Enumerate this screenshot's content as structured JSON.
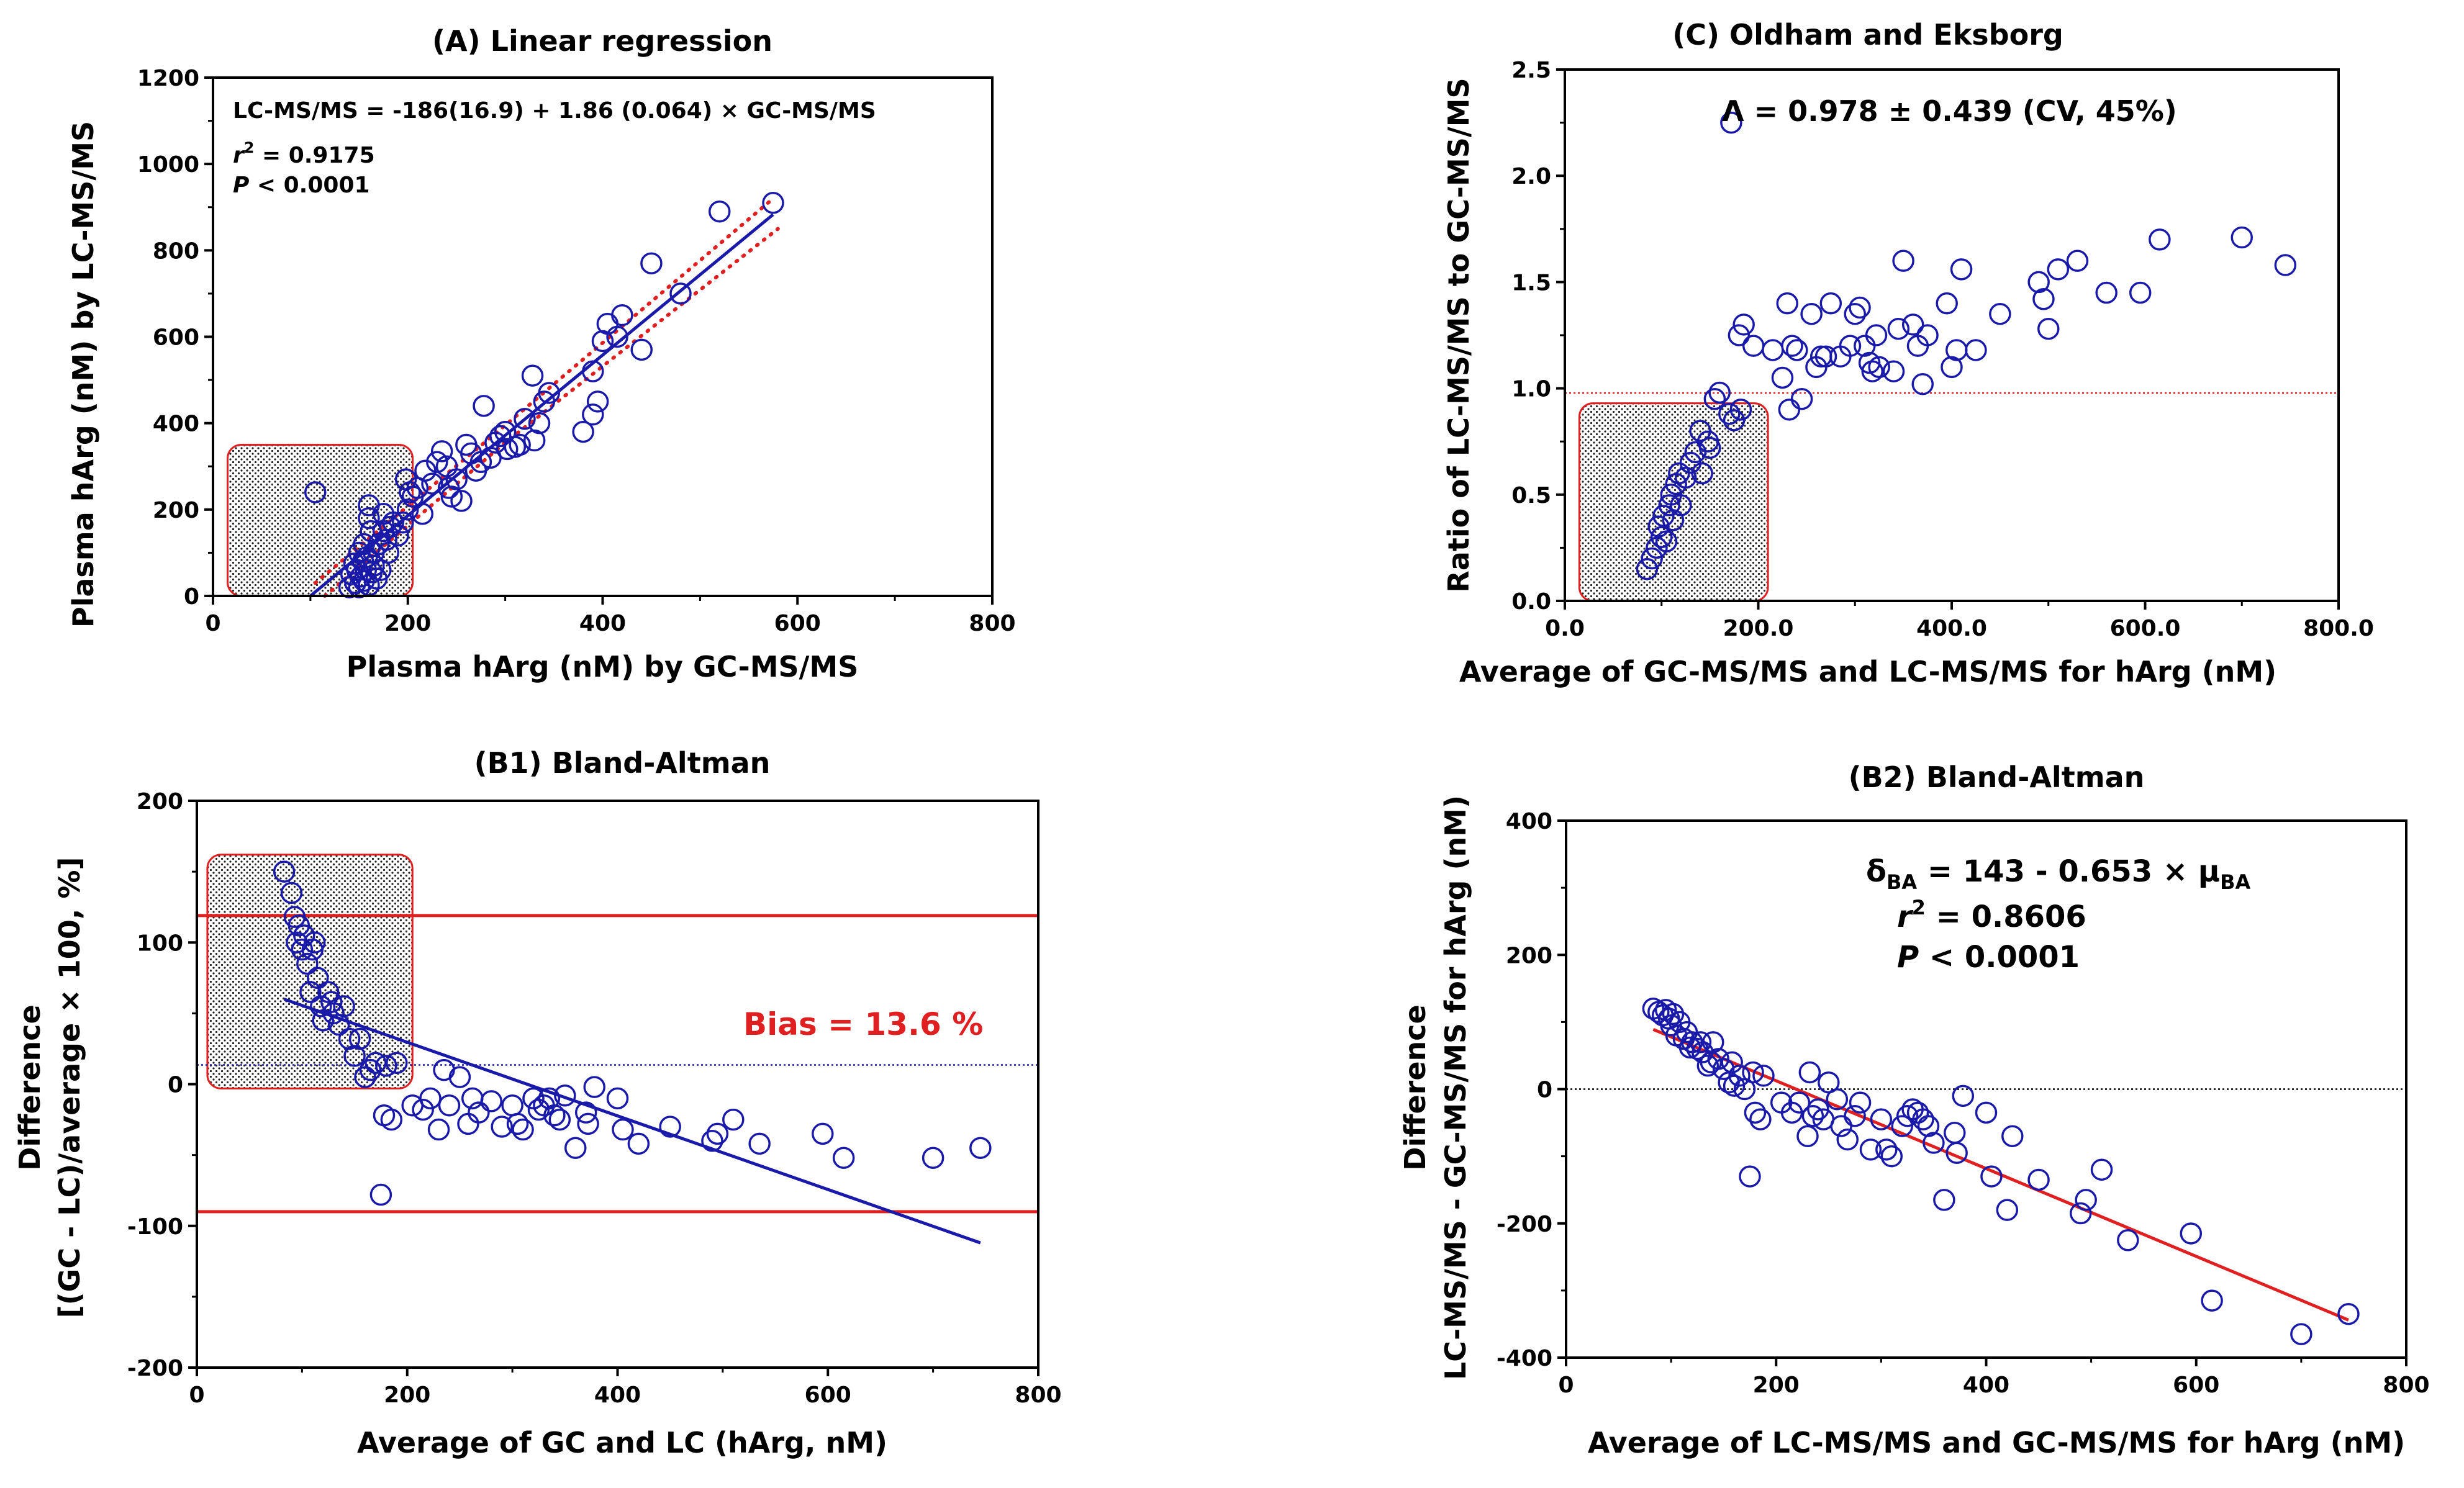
{
  "figure": {
    "colors": {
      "blue": "#1a1aaa",
      "red": "#e02020",
      "black": "#000000"
    }
  },
  "chart_data": [
    {
      "id": "A",
      "type": "scatter",
      "title": "(A) Linear regression",
      "xlabel": "Plasma hArg (nM) by GC-MS/MS",
      "ylabel": "Plasma hArg (nM) by LC-MS/MS",
      "xlim": [
        0,
        800
      ],
      "ylim": [
        0,
        1200
      ],
      "xticks": [
        0,
        200,
        400,
        600,
        800
      ],
      "yticks": [
        0,
        200,
        400,
        600,
        800,
        1000,
        1200
      ],
      "annotations": {
        "equation": "LC-MS/MS = -186(16.9) + 1.86 (0.064) × GC-MS/MS",
        "r2_label": "r",
        "r2_sup": "2",
        "r2_value": " = 0.9175",
        "p_label": "P",
        "p_value": " < 0.0001"
      },
      "regression": {
        "x": [
          100,
          575
        ],
        "y": [
          0,
          883
        ]
      },
      "ci_upper": {
        "x": [
          105,
          300,
          575
        ],
        "y": [
          30,
          395,
          920
        ]
      },
      "ci_lower": {
        "x": [
          115,
          300,
          580
        ],
        "y": [
          0,
          355,
          850
        ]
      },
      "shaded_region": {
        "x0": 15,
        "x1": 205,
        "y0": 0,
        "y1": 350
      },
      "points": [
        [
          105,
          240
        ],
        [
          140,
          20
        ],
        [
          142,
          50
        ],
        [
          145,
          75
        ],
        [
          146,
          30
        ],
        [
          148,
          60
        ],
        [
          150,
          100
        ],
        [
          150,
          20
        ],
        [
          152,
          45
        ],
        [
          154,
          80
        ],
        [
          155,
          35
        ],
        [
          155,
          120
        ],
        [
          157,
          60
        ],
        [
          158,
          90
        ],
        [
          160,
          25
        ],
        [
          160,
          180
        ],
        [
          160,
          210
        ],
        [
          162,
          150
        ],
        [
          163,
          55
        ],
        [
          165,
          100
        ],
        [
          165,
          70
        ],
        [
          168,
          40
        ],
        [
          170,
          120
        ],
        [
          172,
          60
        ],
        [
          175,
          150
        ],
        [
          175,
          190
        ],
        [
          178,
          130
        ],
        [
          180,
          100
        ],
        [
          182,
          160
        ],
        [
          185,
          170
        ],
        [
          190,
          140
        ],
        [
          195,
          170
        ],
        [
          198,
          270
        ],
        [
          200,
          200
        ],
        [
          202,
          240
        ],
        [
          205,
          230
        ],
        [
          210,
          250
        ],
        [
          215,
          190
        ],
        [
          218,
          290
        ],
        [
          225,
          260
        ],
        [
          230,
          310
        ],
        [
          235,
          335
        ],
        [
          240,
          300
        ],
        [
          242,
          250
        ],
        [
          245,
          230
        ],
        [
          250,
          270
        ],
        [
          255,
          220
        ],
        [
          260,
          350
        ],
        [
          265,
          330
        ],
        [
          270,
          290
        ],
        [
          275,
          310
        ],
        [
          278,
          440
        ],
        [
          285,
          320
        ],
        [
          290,
          355
        ],
        [
          295,
          370
        ],
        [
          300,
          380
        ],
        [
          302,
          340
        ],
        [
          310,
          345
        ],
        [
          315,
          350
        ],
        [
          320,
          410
        ],
        [
          328,
          510
        ],
        [
          330,
          360
        ],
        [
          335,
          400
        ],
        [
          340,
          450
        ],
        [
          345,
          470
        ],
        [
          380,
          380
        ],
        [
          390,
          420
        ],
        [
          390,
          520
        ],
        [
          395,
          450
        ],
        [
          400,
          590
        ],
        [
          405,
          630
        ],
        [
          415,
          600
        ],
        [
          420,
          650
        ],
        [
          440,
          570
        ],
        [
          450,
          770
        ],
        [
          480,
          700
        ],
        [
          520,
          890
        ],
        [
          575,
          910
        ]
      ]
    },
    {
      "id": "C",
      "type": "scatter",
      "title": "(C) Oldham and Eksborg",
      "xlabel": "Average of GC-MS/MS and LC-MS/MS for hArg (nM)",
      "ylabel": "Ratio of LC-MS/MS to GC-MS/MS",
      "xlim": [
        0,
        800
      ],
      "ylim": [
        0,
        2.5
      ],
      "xticks": [
        0,
        200,
        400,
        600,
        800
      ],
      "yticks": [
        0.0,
        0.5,
        1.0,
        1.5,
        2.0,
        2.5
      ],
      "annotations": {
        "lambda_text": "Λ = 0.978 ± 0.439 (CV, 45%)"
      },
      "reference_line": {
        "y": 0.978
      },
      "shaded_region": {
        "x0": 15,
        "x1": 210,
        "y0": 0,
        "y1": 0.93
      },
      "points": [
        [
          85,
          0.15
        ],
        [
          90,
          0.2
        ],
        [
          95,
          0.25
        ],
        [
          97,
          0.35
        ],
        [
          100,
          0.3
        ],
        [
          102,
          0.4
        ],
        [
          105,
          0.28
        ],
        [
          108,
          0.45
        ],
        [
          110,
          0.5
        ],
        [
          112,
          0.38
        ],
        [
          115,
          0.55
        ],
        [
          118,
          0.6
        ],
        [
          120,
          0.45
        ],
        [
          125,
          0.58
        ],
        [
          130,
          0.65
        ],
        [
          135,
          0.7
        ],
        [
          140,
          0.8
        ],
        [
          142,
          0.6
        ],
        [
          148,
          0.75
        ],
        [
          150,
          0.72
        ],
        [
          155,
          0.95
        ],
        [
          160,
          0.98
        ],
        [
          170,
          0.88
        ],
        [
          172,
          2.25
        ],
        [
          175,
          0.85
        ],
        [
          180,
          1.25
        ],
        [
          182,
          0.9
        ],
        [
          185,
          1.3
        ],
        [
          195,
          1.2
        ],
        [
          215,
          1.18
        ],
        [
          225,
          1.05
        ],
        [
          230,
          1.4
        ],
        [
          232,
          0.9
        ],
        [
          235,
          1.2
        ],
        [
          240,
          1.18
        ],
        [
          245,
          0.95
        ],
        [
          255,
          1.35
        ],
        [
          260,
          1.1
        ],
        [
          265,
          1.15
        ],
        [
          270,
          1.15
        ],
        [
          275,
          1.4
        ],
        [
          285,
          1.15
        ],
        [
          295,
          1.2
        ],
        [
          300,
          1.35
        ],
        [
          305,
          1.38
        ],
        [
          310,
          1.2
        ],
        [
          315,
          1.12
        ],
        [
          318,
          1.08
        ],
        [
          322,
          1.25
        ],
        [
          325,
          1.1
        ],
        [
          340,
          1.08
        ],
        [
          345,
          1.28
        ],
        [
          350,
          1.6
        ],
        [
          360,
          1.3
        ],
        [
          365,
          1.2
        ],
        [
          370,
          1.02
        ],
        [
          375,
          1.25
        ],
        [
          395,
          1.4
        ],
        [
          400,
          1.1
        ],
        [
          405,
          1.18
        ],
        [
          410,
          1.56
        ],
        [
          425,
          1.18
        ],
        [
          450,
          1.35
        ],
        [
          490,
          1.5
        ],
        [
          495,
          1.42
        ],
        [
          500,
          1.28
        ],
        [
          510,
          1.56
        ],
        [
          530,
          1.6
        ],
        [
          560,
          1.45
        ],
        [
          595,
          1.45
        ],
        [
          615,
          1.7
        ],
        [
          700,
          1.71
        ],
        [
          745,
          1.58
        ]
      ]
    },
    {
      "id": "B1",
      "type": "scatter",
      "title": "(B1) Bland-Altman",
      "xlabel": "Average of GC and LC (hArg, nM)",
      "ylabel_lines": [
        "Difference",
        "[(GC - LC)/average × 100, %]"
      ],
      "xlim": [
        0,
        800
      ],
      "ylim": [
        -200,
        200
      ],
      "xticks": [
        0,
        200,
        400,
        600,
        800
      ],
      "yticks": [
        -200,
        -100,
        0,
        100,
        200
      ],
      "annotations": {
        "bias_text": "Bias = 13.6 %"
      },
      "bias_line": {
        "y": 13.6
      },
      "limits_of_agreement": [
        119,
        -90
      ],
      "regression": {
        "x": [
          83,
          745
        ],
        "y": [
          60,
          -112
        ]
      },
      "shaded_region": {
        "x0": 10,
        "x1": 205,
        "y0": -3,
        "y1": 162
      },
      "points": [
        [
          83,
          150
        ],
        [
          90,
          135
        ],
        [
          93,
          118
        ],
        [
          95,
          100
        ],
        [
          97,
          112
        ],
        [
          100,
          95
        ],
        [
          102,
          105
        ],
        [
          105,
          85
        ],
        [
          108,
          65
        ],
        [
          110,
          95
        ],
        [
          112,
          100
        ],
        [
          115,
          75
        ],
        [
          118,
          55
        ],
        [
          120,
          45
        ],
        [
          125,
          65
        ],
        [
          128,
          58
        ],
        [
          130,
          50
        ],
        [
          135,
          42
        ],
        [
          140,
          55
        ],
        [
          145,
          32
        ],
        [
          150,
          20
        ],
        [
          155,
          32
        ],
        [
          160,
          5
        ],
        [
          165,
          10
        ],
        [
          170,
          15
        ],
        [
          175,
          -78
        ],
        [
          178,
          -22
        ],
        [
          180,
          13
        ],
        [
          185,
          -25
        ],
        [
          190,
          15
        ],
        [
          205,
          -15
        ],
        [
          215,
          -18
        ],
        [
          222,
          -10
        ],
        [
          230,
          -32
        ],
        [
          235,
          10
        ],
        [
          240,
          -15
        ],
        [
          250,
          5
        ],
        [
          258,
          -28
        ],
        [
          262,
          -10
        ],
        [
          268,
          -20
        ],
        [
          280,
          -12
        ],
        [
          290,
          -30
        ],
        [
          300,
          -15
        ],
        [
          305,
          -28
        ],
        [
          310,
          -32
        ],
        [
          320,
          -10
        ],
        [
          325,
          -18
        ],
        [
          330,
          -15
        ],
        [
          335,
          -10
        ],
        [
          340,
          -22
        ],
        [
          345,
          -25
        ],
        [
          350,
          -8
        ],
        [
          360,
          -45
        ],
        [
          370,
          -20
        ],
        [
          372,
          -28
        ],
        [
          378,
          -2
        ],
        [
          400,
          -10
        ],
        [
          405,
          -32
        ],
        [
          420,
          -42
        ],
        [
          450,
          -30
        ],
        [
          490,
          -40
        ],
        [
          495,
          -35
        ],
        [
          510,
          -25
        ],
        [
          535,
          -42
        ],
        [
          595,
          -35
        ],
        [
          615,
          -52
        ],
        [
          700,
          -52
        ],
        [
          745,
          -45
        ]
      ]
    },
    {
      "id": "B2",
      "type": "scatter",
      "title": "(B2) Bland-Altman",
      "xlabel": "Average of LC-MS/MS and GC-MS/MS for hArg (nM)",
      "ylabel_lines": [
        "Difference",
        "LC-MS/MS - GC-MS/MS for hArg (nM)"
      ],
      "xlim": [
        0,
        800
      ],
      "ylim": [
        -400,
        400
      ],
      "xticks": [
        0,
        200,
        400,
        600,
        800
      ],
      "yticks": [
        -400,
        -200,
        0,
        200,
        400
      ],
      "annotations": {
        "delta_symbol": "δ",
        "delta_sub": "BA",
        "delta_rest": " = 143 - 0.653 × μ",
        "mu_sub": "BA",
        "r2_label": "r",
        "r2_sup": "2",
        "r2_value": " = 0.8606",
        "p_label": "P",
        "p_value": " < 0.0001"
      },
      "reference_line": {
        "y": 0
      },
      "regression": {
        "x": [
          83,
          745
        ],
        "y": [
          89,
          -344
        ]
      },
      "points": [
        [
          83,
          120
        ],
        [
          88,
          115
        ],
        [
          92,
          110
        ],
        [
          95,
          118
        ],
        [
          98,
          105
        ],
        [
          100,
          95
        ],
        [
          102,
          112
        ],
        [
          105,
          80
        ],
        [
          108,
          100
        ],
        [
          112,
          75
        ],
        [
          115,
          85
        ],
        [
          118,
          62
        ],
        [
          120,
          70
        ],
        [
          125,
          60
        ],
        [
          128,
          70
        ],
        [
          130,
          55
        ],
        [
          135,
          35
        ],
        [
          138,
          40
        ],
        [
          140,
          70
        ],
        [
          145,
          45
        ],
        [
          150,
          30
        ],
        [
          155,
          10
        ],
        [
          158,
          40
        ],
        [
          160,
          5
        ],
        [
          165,
          20
        ],
        [
          170,
          0
        ],
        [
          175,
          -130
        ],
        [
          178,
          25
        ],
        [
          180,
          -35
        ],
        [
          185,
          -45
        ],
        [
          188,
          20
        ],
        [
          205,
          -20
        ],
        [
          215,
          -35
        ],
        [
          222,
          -20
        ],
        [
          230,
          -70
        ],
        [
          232,
          25
        ],
        [
          235,
          -40
        ],
        [
          240,
          -30
        ],
        [
          245,
          -45
        ],
        [
          250,
          10
        ],
        [
          258,
          -15
        ],
        [
          262,
          -55
        ],
        [
          268,
          -75
        ],
        [
          275,
          -40
        ],
        [
          280,
          -20
        ],
        [
          290,
          -90
        ],
        [
          300,
          -45
        ],
        [
          305,
          -90
        ],
        [
          310,
          -100
        ],
        [
          320,
          -55
        ],
        [
          325,
          -40
        ],
        [
          330,
          -30
        ],
        [
          335,
          -35
        ],
        [
          340,
          -45
        ],
        [
          345,
          -55
        ],
        [
          350,
          -80
        ],
        [
          360,
          -165
        ],
        [
          370,
          -65
        ],
        [
          372,
          -95
        ],
        [
          378,
          -10
        ],
        [
          400,
          -35
        ],
        [
          405,
          -130
        ],
        [
          420,
          -180
        ],
        [
          425,
          -70
        ],
        [
          450,
          -135
        ],
        [
          490,
          -185
        ],
        [
          495,
          -165
        ],
        [
          510,
          -120
        ],
        [
          535,
          -225
        ],
        [
          595,
          -215
        ],
        [
          615,
          -315
        ],
        [
          700,
          -365
        ],
        [
          745,
          -335
        ]
      ]
    }
  ]
}
